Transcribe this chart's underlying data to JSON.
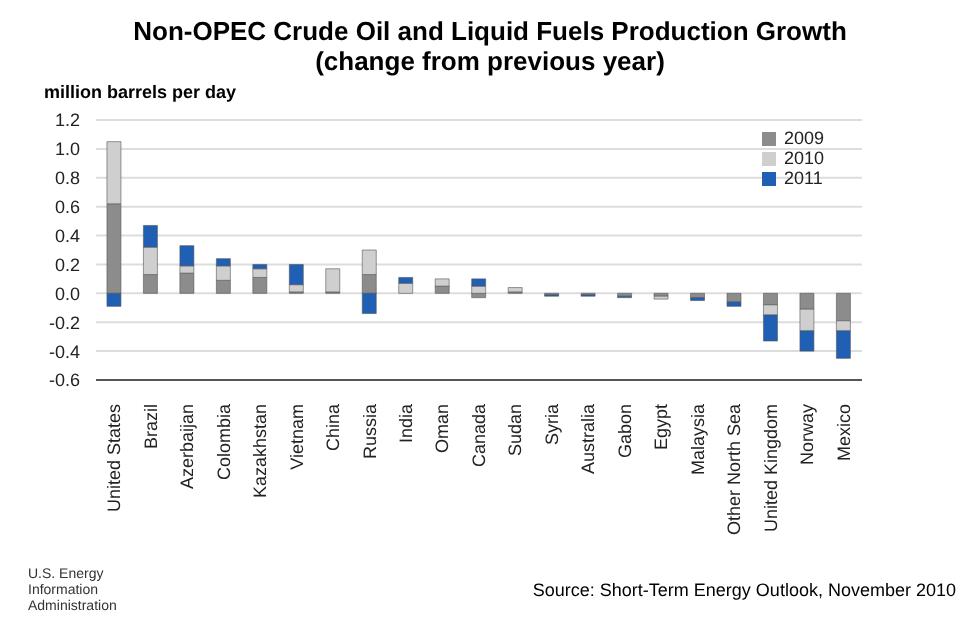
{
  "chart_data": {
    "type": "bar",
    "title": "Non-OPEC Crude Oil and Liquid Fuels Production Growth",
    "subtitle": "(change from previous year)",
    "ylabel": "million barrels per day",
    "categories": [
      "United States",
      "Brazil",
      "Azerbaijan",
      "Colombia",
      "Kazakhstan",
      "Vietnam",
      "China",
      "Russia",
      "India",
      "Oman",
      "Canada",
      "Sudan",
      "Syria",
      "Australia",
      "Gabon",
      "Egypt",
      "Malaysia",
      "Other North Sea",
      "United Kingdom",
      "Norway",
      "Mexico"
    ],
    "stacked": true,
    "series": [
      {
        "name": "2009",
        "color": "#8c8c8c",
        "values": [
          0.62,
          0.13,
          0.14,
          0.09,
          0.11,
          0.01,
          0.01,
          0.13,
          0,
          0.05,
          -0.03,
          0.01,
          -0.01,
          -0.01,
          -0.02,
          -0.02,
          -0.03,
          -0.06,
          -0.08,
          -0.11,
          -0.19
        ]
      },
      {
        "name": "2010",
        "color": "#cfcfcf",
        "values": [
          0.43,
          0.19,
          0.05,
          0.1,
          0.06,
          0.05,
          0.16,
          0.17,
          0.07,
          0.05,
          0.05,
          0.03,
          0,
          0,
          0,
          -0.02,
          0,
          0,
          -0.07,
          -0.15,
          -0.07
        ]
      },
      {
        "name": "2011",
        "color": "#1f5fb4",
        "values": [
          -0.09,
          0.15,
          0.14,
          0.05,
          0.03,
          0.14,
          0,
          -0.14,
          0.04,
          0,
          0.05,
          0,
          -0.01,
          -0.01,
          -0.01,
          0,
          -0.02,
          -0.03,
          -0.18,
          -0.14,
          -0.19
        ]
      }
    ],
    "ylim": [
      -0.6,
      1.2
    ],
    "yticks": [
      {
        "value": -0.6,
        "label": "-0.6"
      },
      {
        "value": -0.4,
        "label": "-0.4"
      },
      {
        "value": -0.2,
        "label": "-0.2"
      },
      {
        "value": 0,
        "label": "0.0"
      },
      {
        "value": 0.2,
        "label": "0.2"
      },
      {
        "value": 0.4,
        "label": "0.4"
      },
      {
        "value": 0.6,
        "label": "0.6"
      },
      {
        "value": 0.8,
        "label": "0.8"
      },
      {
        "value": 1,
        "label": "1.0"
      },
      {
        "value": 1.2,
        "label": "1.2"
      }
    ],
    "grid": "y",
    "legend": "top right",
    "annotations": [
      "Source: Short-Term Energy Outlook, November 2010",
      "U.S. Energy Information Administration"
    ]
  }
}
